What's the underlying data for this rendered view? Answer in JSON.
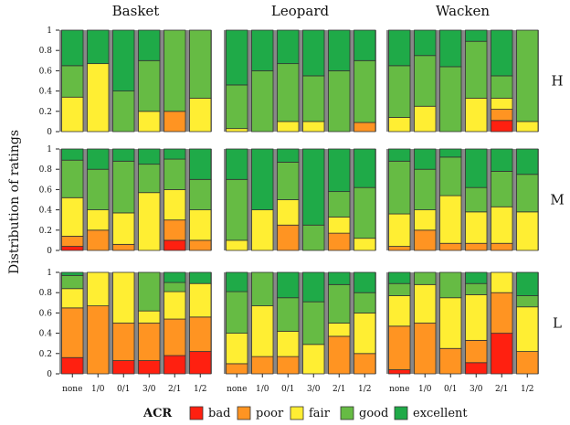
{
  "chart_data": {
    "type": "bar",
    "stacked": true,
    "ylabel": "Distribution of ratings",
    "ylim": [
      0,
      1
    ],
    "yticks": [
      "0",
      "0.2",
      "0.4",
      "0.6",
      "0.8",
      "1"
    ],
    "categories": [
      "none",
      "1/0",
      "0/1",
      "3/0",
      "2/1",
      "1/2"
    ],
    "columns": [
      "Basket",
      "Leopard",
      "Wacken"
    ],
    "rows": [
      "H",
      "M",
      "L"
    ],
    "levels": [
      "bad",
      "poor",
      "fair",
      "good",
      "excellent"
    ],
    "colors": {
      "bad": "#ff2010",
      "poor": "#ff9422",
      "fair": "#ffee33",
      "good": "#66bb44",
      "excellent": "#1faa48"
    },
    "legend": {
      "title": "ACR",
      "position": "bottom",
      "items": [
        "bad",
        "poor",
        "fair",
        "good",
        "excellent"
      ]
    },
    "panels": {
      "Basket": {
        "H": [
          [
            0,
            0,
            0.34,
            0.31,
            0.35
          ],
          [
            0,
            0,
            0.67,
            0,
            0.33
          ],
          [
            0,
            0,
            0,
            0.4,
            0.6
          ],
          [
            0,
            0,
            0.2,
            0.5,
            0.3
          ],
          [
            0,
            0.2,
            0,
            0.8,
            0
          ],
          [
            0,
            0,
            0.33,
            0.67,
            0
          ]
        ],
        "M": [
          [
            0.04,
            0.1,
            0.38,
            0.37,
            0.11
          ],
          [
            0,
            0.2,
            0.2,
            0.4,
            0.2
          ],
          [
            0,
            0.06,
            0.31,
            0.51,
            0.12
          ],
          [
            0,
            0,
            0.57,
            0.28,
            0.15
          ],
          [
            0.1,
            0.2,
            0.3,
            0.3,
            0.1
          ],
          [
            0,
            0.1,
            0.3,
            0.3,
            0.3
          ]
        ],
        "L": [
          [
            0.16,
            0.49,
            0.19,
            0.13,
            0.03
          ],
          [
            0,
            0.67,
            0.33,
            0,
            0
          ],
          [
            0.13,
            0.37,
            0.5,
            0,
            0
          ],
          [
            0.13,
            0.37,
            0.12,
            0.38,
            0
          ],
          [
            0.18,
            0.36,
            0.27,
            0.09,
            0.1
          ],
          [
            0.22,
            0.34,
            0.33,
            0,
            0.11
          ]
        ]
      },
      "Leopard": {
        "H": [
          [
            0,
            0,
            0.03,
            0.43,
            0.54
          ],
          [
            0,
            0,
            0,
            0.6,
            0.4
          ],
          [
            0,
            0,
            0.1,
            0.57,
            0.33
          ],
          [
            0,
            0,
            0.1,
            0.45,
            0.45
          ],
          [
            0,
            0,
            0,
            0.6,
            0.4
          ],
          [
            0,
            0.09,
            0,
            0.61,
            0.3
          ]
        ],
        "M": [
          [
            0,
            0,
            0.1,
            0.6,
            0.3
          ],
          [
            0,
            0,
            0.4,
            0,
            0.6
          ],
          [
            0,
            0.25,
            0.25,
            0.37,
            0.13
          ],
          [
            0,
            0,
            0,
            0.25,
            0.75
          ],
          [
            0,
            0.17,
            0.16,
            0.25,
            0.42
          ],
          [
            0,
            0,
            0.12,
            0.5,
            0.38
          ]
        ],
        "L": [
          [
            0,
            0.1,
            0.3,
            0.41,
            0.19
          ],
          [
            0,
            0.17,
            0.5,
            0.33,
            0
          ],
          [
            0,
            0.17,
            0.25,
            0.33,
            0.25
          ],
          [
            0,
            0,
            0.29,
            0.42,
            0.29
          ],
          [
            0,
            0.37,
            0.13,
            0.38,
            0.12
          ],
          [
            0,
            0.2,
            0.4,
            0.2,
            0.2
          ]
        ]
      },
      "Wacken": {
        "H": [
          [
            0,
            0,
            0.14,
            0.51,
            0.35
          ],
          [
            0,
            0,
            0.25,
            0.5,
            0.25
          ],
          [
            0,
            0,
            0,
            0.64,
            0.36
          ],
          [
            0,
            0,
            0.33,
            0.56,
            0.11
          ],
          [
            0.11,
            0.11,
            0.11,
            0.22,
            0.45
          ],
          [
            0,
            0,
            0.1,
            0.9,
            0
          ]
        ],
        "M": [
          [
            0,
            0.04,
            0.32,
            0.52,
            0.12
          ],
          [
            0,
            0.2,
            0.2,
            0.4,
            0.2
          ],
          [
            0,
            0.07,
            0.47,
            0.38,
            0.08
          ],
          [
            0,
            0.07,
            0.31,
            0.24,
            0.38
          ],
          [
            0,
            0.07,
            0.36,
            0.35,
            0.22
          ],
          [
            0,
            0,
            0.38,
            0.37,
            0.25
          ]
        ],
        "L": [
          [
            0.04,
            0.43,
            0.3,
            0.12,
            0.11
          ],
          [
            0,
            0.5,
            0.38,
            0.12,
            0
          ],
          [
            0,
            0.25,
            0.5,
            0.25,
            0
          ],
          [
            0.11,
            0.22,
            0.45,
            0.11,
            0.11
          ],
          [
            0.4,
            0.4,
            0.2,
            0,
            0
          ],
          [
            0,
            0.22,
            0.44,
            0.11,
            0.23
          ]
        ]
      }
    }
  }
}
